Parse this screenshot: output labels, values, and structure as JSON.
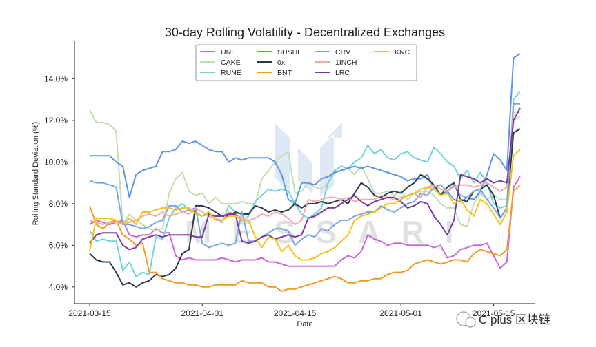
{
  "chart_data": {
    "type": "line",
    "title": "30-day Rolling Volatility - Decentralized Exchanges",
    "xlabel": "Date",
    "ylabel": "Rolling Standard Deviation (%)",
    "x_range": [
      "2021-03-15",
      "2021-05-19"
    ],
    "ylim": [
      3.2,
      15.8
    ],
    "y_ticks": [
      "4.0%",
      "6.0%",
      "8.0%",
      "10.0%",
      "12.0%",
      "14.0%"
    ],
    "y_tick_values": [
      4,
      6,
      8,
      10,
      12,
      14
    ],
    "x_ticks": [
      "2021-03-15",
      "2021-04-01",
      "2021-04-15",
      "2021-05-01",
      "2021-05-15"
    ],
    "x_tick_dates": [
      "2021-03-15",
      "2021-04-01",
      "2021-04-15",
      "2021-05-01",
      "2021-05-15"
    ],
    "legend_position": "top-center",
    "grid": false,
    "dates": [
      "2021-03-15",
      "2021-03-16",
      "2021-03-17",
      "2021-03-18",
      "2021-03-19",
      "2021-03-20",
      "2021-03-21",
      "2021-03-22",
      "2021-03-23",
      "2021-03-24",
      "2021-03-25",
      "2021-03-26",
      "2021-03-27",
      "2021-03-28",
      "2021-03-29",
      "2021-03-30",
      "2021-03-31",
      "2021-04-01",
      "2021-04-02",
      "2021-04-03",
      "2021-04-04",
      "2021-04-05",
      "2021-04-06",
      "2021-04-07",
      "2021-04-08",
      "2021-04-09",
      "2021-04-10",
      "2021-04-11",
      "2021-04-12",
      "2021-04-13",
      "2021-04-14",
      "2021-04-15",
      "2021-04-16",
      "2021-04-17",
      "2021-04-18",
      "2021-04-19",
      "2021-04-20",
      "2021-04-21",
      "2021-04-22",
      "2021-04-23",
      "2021-04-24",
      "2021-04-25",
      "2021-04-26",
      "2021-04-27",
      "2021-04-28",
      "2021-04-29",
      "2021-04-30",
      "2021-05-01",
      "2021-05-02",
      "2021-05-03",
      "2021-05-04",
      "2021-05-05",
      "2021-05-06",
      "2021-05-07",
      "2021-05-08",
      "2021-05-09",
      "2021-05-10",
      "2021-05-11",
      "2021-05-12",
      "2021-05-13",
      "2021-05-14",
      "2021-05-15",
      "2021-05-16",
      "2021-05-17",
      "2021-05-18",
      "2021-05-19"
    ],
    "series": [
      {
        "name": "UNI",
        "color": "#cc66dd",
        "values": [
          7.0,
          7.2,
          7.1,
          7.0,
          7.1,
          7.2,
          6.5,
          6.4,
          6.5,
          6.5,
          6.8,
          6.6,
          6.6,
          5.5,
          5.3,
          5.4,
          5.3,
          5.3,
          5.3,
          5.3,
          5.4,
          5.3,
          5.2,
          5.3,
          5.3,
          5.3,
          5.4,
          5.2,
          5.2,
          5.1,
          5.0,
          5.0,
          5.0,
          5.0,
          5.0,
          5.0,
          5.0,
          5.0,
          5.3,
          5.5,
          5.4,
          5.7,
          6.5,
          6.3,
          6.2,
          6.0,
          6.1,
          6.1,
          6.0,
          6.0,
          6.0,
          6.0,
          5.9,
          6.0,
          5.4,
          5.5,
          5.8,
          5.9,
          6.0,
          6.0,
          6.1,
          5.5,
          4.9,
          5.2,
          8.8,
          9.3
        ]
      },
      {
        "name": "CAKE",
        "color": "#bfdfb0",
        "values": [
          12.5,
          11.9,
          11.9,
          11.8,
          11.5,
          7.0,
          7.5,
          7.2,
          7.0,
          6.8,
          6.7,
          6.8,
          8.5,
          9.2,
          9.5,
          8.6,
          8.4,
          8.5,
          8.0,
          8.3,
          8.0,
          8.0,
          8.0,
          8.1,
          8.0,
          8.0,
          9.2,
          9.6,
          10.0,
          10.3,
          10.5,
          8.5,
          8.6,
          9.0,
          8.8,
          8.7,
          9.0,
          9.5,
          9.6,
          9.7,
          9.4,
          9.8,
          9.2,
          8.5,
          8.5,
          8.6,
          8.4,
          8.6,
          8.2,
          8.5,
          8.6,
          8.6,
          8.4,
          8.0,
          7.8,
          7.8,
          7.0,
          6.9,
          8.0,
          8.5,
          8.2,
          8.4,
          8.2,
          8.2,
          12.0,
          12.2
        ]
      },
      {
        "name": "RUNE",
        "color": "#6fd3d9",
        "values": [
          6.7,
          6.2,
          6.3,
          6.2,
          6.2,
          4.8,
          5.2,
          4.5,
          4.7,
          4.6,
          6.4,
          6.3,
          7.3,
          7.8,
          8.0,
          7.7,
          7.6,
          7.4,
          7.5,
          7.3,
          7.1,
          7.9,
          7.6,
          7.2,
          7.4,
          8.1,
          8.4,
          8.7,
          8.6,
          8.7,
          8.6,
          8.0,
          7.5,
          7.3,
          7.5,
          7.8,
          9.0,
          9.6,
          9.8,
          9.7,
          10.0,
          10.2,
          10.8,
          10.4,
          10.6,
          10.2,
          10.1,
          10.4,
          10.5,
          10.2,
          10.1,
          10.0,
          10.7,
          10.4,
          10.0,
          9.8,
          9.2,
          9.6,
          9.0,
          9.5,
          9.0,
          8.0,
          7.8,
          7.9,
          13.0,
          13.4
        ]
      },
      {
        "name": "SUSHI",
        "color": "#5b96e9",
        "values": [
          10.3,
          10.3,
          10.3,
          10.3,
          10.0,
          9.8,
          8.3,
          9.4,
          9.6,
          9.7,
          9.8,
          10.5,
          10.5,
          10.6,
          11.0,
          10.9,
          11.0,
          10.8,
          10.6,
          10.5,
          10.5,
          10.0,
          10.2,
          10.1,
          10.2,
          10.2,
          10.2,
          10.2,
          10.0,
          9.4,
          8.2,
          8.0,
          9.0,
          9.0,
          8.9,
          9.2,
          9.3,
          9.5,
          9.6,
          9.7,
          9.8,
          9.7,
          9.8,
          9.7,
          9.6,
          9.5,
          9.4,
          9.3,
          9.1,
          9.2,
          9.2,
          9.4,
          8.7,
          8.4,
          8.6,
          8.2,
          8.1,
          8.3,
          8.2,
          8.6,
          9.4,
          10.4,
          10.1,
          9.6,
          15.0,
          15.2
        ]
      },
      {
        "name": "0x",
        "color": "#253a4b",
        "values": [
          5.6,
          5.3,
          5.2,
          5.2,
          4.7,
          4.1,
          4.2,
          4.0,
          4.2,
          4.3,
          4.6,
          4.5,
          4.6,
          4.9,
          5.6,
          5.8,
          7.9,
          7.9,
          7.8,
          7.6,
          7.4,
          7.4,
          7.6,
          7.5,
          7.5,
          7.9,
          7.8,
          7.6,
          7.7,
          7.6,
          7.7,
          8.0,
          7.8,
          8.0,
          8.0,
          8.1,
          8.0,
          8.1,
          8.2,
          8.0,
          8.5,
          9.0,
          8.8,
          8.4,
          8.3,
          8.5,
          8.6,
          8.5,
          8.8,
          9.0,
          9.4,
          9.2,
          8.9,
          8.4,
          8.8,
          9.0,
          8.2,
          8.1,
          8.6,
          8.7,
          8.9,
          8.4,
          7.3,
          7.8,
          11.4,
          11.6
        ]
      },
      {
        "name": "BNT",
        "color": "#f39a1f",
        "values": [
          7.9,
          7.0,
          6.8,
          7.1,
          7.2,
          6.5,
          6.3,
          6.0,
          6.1,
          4.7,
          4.7,
          4.4,
          4.3,
          4.2,
          4.2,
          4.1,
          4.1,
          4.0,
          4.0,
          4.1,
          4.1,
          4.1,
          4.1,
          4.3,
          4.2,
          4.2,
          4.2,
          4.0,
          4.0,
          3.8,
          3.9,
          3.9,
          4.0,
          4.1,
          4.2,
          4.3,
          4.4,
          4.5,
          4.4,
          4.2,
          4.2,
          4.3,
          4.3,
          4.4,
          4.4,
          4.6,
          4.7,
          4.7,
          4.8,
          5.1,
          5.2,
          5.3,
          5.2,
          5.1,
          5.2,
          5.3,
          5.3,
          5.2,
          5.6,
          5.8,
          5.7,
          5.6,
          5.5,
          5.8,
          8.6,
          8.9
        ]
      },
      {
        "name": "CRV",
        "color": "#7aa7e3",
        "values": [
          9.1,
          9.0,
          9.0,
          8.9,
          8.8,
          7.0,
          7.0,
          6.9,
          6.8,
          6.9,
          7.1,
          7.2,
          7.9,
          7.9,
          7.6,
          7.7,
          7.8,
          6.1,
          5.9,
          6.0,
          6.1,
          6.0,
          6.1,
          7.6,
          6.2,
          6.2,
          6.4,
          6.6,
          6.8,
          6.8,
          6.7,
          6.0,
          6.3,
          6.5,
          6.4,
          6.8,
          6.7,
          7.0,
          7.2,
          7.2,
          7.4,
          7.5,
          7.6,
          7.6,
          7.9,
          7.7,
          7.6,
          7.8,
          8.0,
          8.1,
          8.5,
          8.4,
          8.8,
          8.9,
          8.6,
          8.9,
          8.4,
          8.3,
          8.6,
          8.7,
          8.2,
          7.8,
          7.3,
          7.8,
          12.8,
          12.8
        ]
      },
      {
        "name": "1INCH",
        "color": "#f5a9a9",
        "values": [
          7.2,
          7.1,
          7.0,
          7.1,
          7.1,
          7.0,
          7.1,
          7.2,
          7.4,
          7.5,
          7.4,
          7.6,
          7.4,
          7.5,
          7.6,
          7.5,
          7.8,
          7.6,
          7.4,
          7.3,
          7.2,
          7.6,
          7.5,
          7.3,
          7.2,
          7.3,
          7.5,
          7.4,
          7.6,
          7.5,
          7.3,
          7.0,
          7.2,
          8.2,
          8.1,
          8.2,
          8.3,
          8.3,
          8.2,
          8.3,
          8.1,
          8.2,
          8.2,
          8.2,
          8.4,
          8.3,
          8.2,
          8.3,
          8.4,
          8.5,
          8.3,
          8.8,
          8.9,
          8.7,
          8.6,
          8.8,
          8.9,
          8.9,
          8.8,
          8.9,
          9.0,
          8.8,
          8.6,
          8.8,
          12.4,
          12.4
        ]
      },
      {
        "name": "LRC",
        "color": "#7a3a9a",
        "values": [
          6.1,
          6.5,
          6.6,
          6.6,
          6.6,
          6.0,
          5.8,
          5.9,
          6.3,
          6.4,
          6.5,
          6.4,
          6.5,
          6.5,
          6.5,
          6.5,
          6.4,
          6.4,
          7.5,
          7.4,
          7.4,
          7.5,
          7.5,
          6.2,
          6.1,
          6.2,
          6.4,
          6.5,
          6.3,
          6.4,
          6.5,
          6.4,
          6.5,
          7.3,
          7.4,
          7.6,
          7.8,
          7.8,
          8.0,
          8.2,
          8.4,
          8.1,
          7.9,
          8.1,
          8.2,
          8.3,
          8.3,
          8.1,
          7.8,
          7.9,
          8.1,
          8.0,
          7.4,
          7.0,
          6.5,
          7.2,
          9.4,
          9.3,
          9.2,
          9.0,
          9.2,
          9.0,
          9.1,
          9.0,
          12.0,
          12.6
        ]
      },
      {
        "name": "KNC",
        "color": "#f2c21b",
        "values": [
          5.7,
          7.3,
          7.3,
          7.3,
          7.2,
          7.0,
          7.3,
          7.0,
          7.6,
          7.6,
          7.7,
          7.8,
          7.8,
          7.7,
          7.8,
          7.8,
          7.5,
          7.4,
          7.6,
          7.2,
          7.2,
          7.4,
          7.4,
          7.2,
          7.2,
          6.4,
          5.9,
          6.4,
          6.3,
          5.7,
          6.0,
          5.5,
          5.3,
          5.3,
          5.4,
          5.6,
          5.7,
          5.9,
          6.2,
          6.5,
          7.2,
          7.4,
          7.5,
          7.6,
          7.8,
          8.0,
          8.0,
          8.2,
          8.4,
          8.5,
          8.7,
          8.8,
          8.7,
          8.4,
          8.5,
          8.0,
          8.2,
          7.7,
          7.4,
          8.2,
          8.0,
          7.5,
          7.0,
          7.6,
          10.3,
          10.6
        ]
      }
    ]
  },
  "watermark": {
    "text": "MESSARI"
  },
  "overlay": {
    "brand_text": "C plus 区块链"
  }
}
